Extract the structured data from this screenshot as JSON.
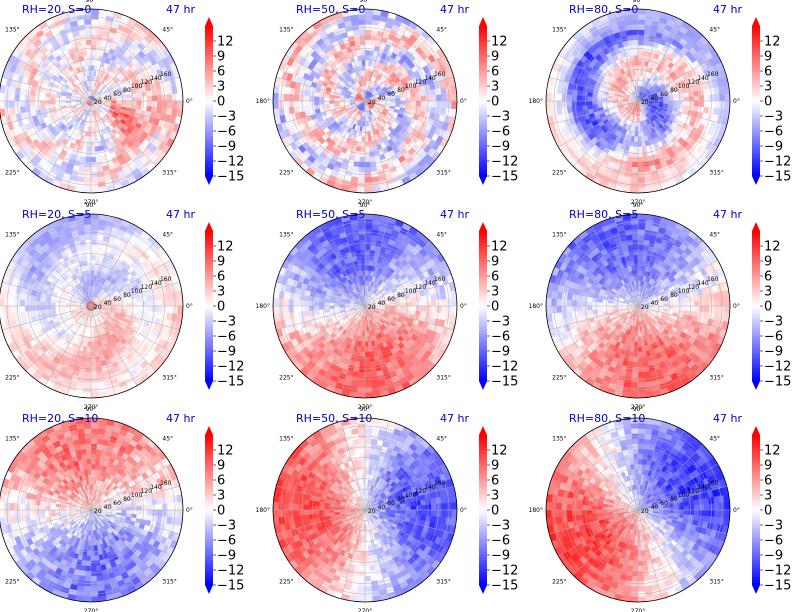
{
  "figure": {
    "background": "#ffffff",
    "title_color": "#0000cc"
  },
  "colormap": {
    "name": "bwr",
    "low": "#0000ff",
    "mid": "#ffffff",
    "high": "#ff0000"
  },
  "chart_data": [
    {
      "type": "heatmap",
      "projection": "polar",
      "title": "RH=20, S=0",
      "time_label": "47 hr",
      "row": 0,
      "col": 0,
      "theta_tick_labels": [
        "0°",
        "45°",
        "90°",
        "135°",
        "180°",
        "225°",
        "270°",
        "315°"
      ],
      "r_tick_labels": [
        "20",
        "40",
        "60",
        "80",
        "100",
        "120",
        "140",
        "160"
      ],
      "rlim": [
        0,
        175
      ],
      "colorbar": {
        "ticks": [
          12,
          9,
          6,
          3,
          0,
          -3,
          -6,
          -9,
          -12,
          -15
        ],
        "range": [
          -15,
          15
        ],
        "extend": "both"
      },
      "pattern": "weak_mixed"
    },
    {
      "type": "heatmap",
      "projection": "polar",
      "title": "RH=50, S=0",
      "time_label": "47 hr",
      "row": 0,
      "col": 1,
      "theta_tick_labels": [
        "0°",
        "45°",
        "90°",
        "135°",
        "180°",
        "225°",
        "270°",
        "315°"
      ],
      "r_tick_labels": [
        "20",
        "40",
        "60",
        "80",
        "100",
        "120",
        "140",
        "160"
      ],
      "rlim": [
        0,
        175
      ],
      "colorbar": {
        "ticks": [
          12,
          9,
          6,
          3,
          0,
          -3,
          -6,
          -9,
          -12,
          -15
        ],
        "range": [
          -15,
          15
        ],
        "extend": "both"
      },
      "pattern": "mixed_rings"
    },
    {
      "type": "heatmap",
      "projection": "polar",
      "title": "RH=80, S=0",
      "time_label": "47 hr",
      "row": 0,
      "col": 2,
      "theta_tick_labels": [
        "0°",
        "45°",
        "90°",
        "135°",
        "180°",
        "225°",
        "270°",
        "315°"
      ],
      "r_tick_labels": [
        "20",
        "40",
        "60",
        "80",
        "100",
        "120",
        "140",
        "160"
      ],
      "rlim": [
        0,
        175
      ],
      "colorbar": {
        "ticks": [
          12,
          9,
          6,
          3,
          0,
          -3,
          -6,
          -9,
          -12,
          -15
        ],
        "range": [
          -15,
          15
        ],
        "extend": "both"
      },
      "pattern": "spiral_blue"
    },
    {
      "type": "heatmap",
      "projection": "polar",
      "title": "RH=20, S=5",
      "time_label": "47 hr",
      "row": 1,
      "col": 0,
      "theta_tick_labels": [
        "0°",
        "45°",
        "90°",
        "135°",
        "180°",
        "225°",
        "270°",
        "315°"
      ],
      "r_tick_labels": [
        "20",
        "40",
        "60",
        "80",
        "100",
        "120",
        "140",
        "160"
      ],
      "rlim": [
        0,
        175
      ],
      "colorbar": {
        "ticks": [
          12,
          9,
          6,
          3,
          0,
          -3,
          -6,
          -9,
          -12,
          -15
        ],
        "range": [
          -15,
          15
        ],
        "extend": "both"
      },
      "pattern": "weak_dipole"
    },
    {
      "type": "heatmap",
      "projection": "polar",
      "title": "RH=50, S=5",
      "time_label": "47 hr",
      "row": 1,
      "col": 1,
      "theta_tick_labels": [
        "0°",
        "45°",
        "90°",
        "135°",
        "180°",
        "225°",
        "270°",
        "315°"
      ],
      "r_tick_labels": [
        "20",
        "40",
        "60",
        "80",
        "100",
        "120",
        "140",
        "160"
      ],
      "rlim": [
        0,
        175
      ],
      "colorbar": {
        "ticks": [
          12,
          9,
          6,
          3,
          0,
          -3,
          -6,
          -9,
          -12,
          -15
        ],
        "range": [
          -15,
          15
        ],
        "extend": "both"
      },
      "pattern": "dipole_ne_sw"
    },
    {
      "type": "heatmap",
      "projection": "polar",
      "title": "RH=80, S=5",
      "time_label": "47 hr",
      "row": 1,
      "col": 2,
      "theta_tick_labels": [
        "0°",
        "45°",
        "90°",
        "135°",
        "180°",
        "225°",
        "270°",
        "315°"
      ],
      "r_tick_labels": [
        "20",
        "40",
        "60",
        "80",
        "100",
        "120",
        "140",
        "160"
      ],
      "rlim": [
        0,
        175
      ],
      "colorbar": {
        "ticks": [
          12,
          9,
          6,
          3,
          0,
          -3,
          -6,
          -9,
          -12,
          -15
        ],
        "range": [
          -15,
          15
        ],
        "extend": "both"
      },
      "pattern": "dipole_n_s"
    },
    {
      "type": "heatmap",
      "projection": "polar",
      "title": "RH=20, S=10",
      "time_label": "47 hr",
      "row": 2,
      "col": 0,
      "theta_tick_labels": [
        "0°",
        "45°",
        "90°",
        "135°",
        "180°",
        "225°",
        "270°",
        "315°"
      ],
      "r_tick_labels": [
        "20",
        "40",
        "60",
        "80",
        "100",
        "120",
        "140",
        "160"
      ],
      "rlim": [
        0,
        175
      ],
      "colorbar": {
        "ticks": [
          12,
          9,
          6,
          3,
          0,
          -3,
          -6,
          -9,
          -12,
          -15
        ],
        "range": [
          -15,
          15
        ],
        "extend": "both"
      },
      "pattern": "red_north_blue_south"
    },
    {
      "type": "heatmap",
      "projection": "polar",
      "title": "RH=50, S=10",
      "time_label": "47 hr",
      "row": 2,
      "col": 1,
      "theta_tick_labels": [
        "0°",
        "45°",
        "90°",
        "135°",
        "180°",
        "225°",
        "270°",
        "315°"
      ],
      "r_tick_labels": [
        "20",
        "40",
        "60",
        "80",
        "100",
        "120",
        "140",
        "160"
      ],
      "rlim": [
        0,
        175
      ],
      "colorbar": {
        "ticks": [
          12,
          9,
          6,
          3,
          0,
          -3,
          -6,
          -9,
          -12,
          -15
        ],
        "range": [
          -15,
          15
        ],
        "extend": "both"
      },
      "pattern": "red_west_blue_east"
    },
    {
      "type": "heatmap",
      "projection": "polar",
      "title": "RH=80, S=10",
      "time_label": "47 hr",
      "row": 2,
      "col": 2,
      "theta_tick_labels": [
        "0°",
        "45°",
        "90°",
        "135°",
        "180°",
        "225°",
        "270°",
        "315°"
      ],
      "r_tick_labels": [
        "20",
        "40",
        "60",
        "80",
        "100",
        "120",
        "140",
        "160"
      ],
      "rlim": [
        0,
        175
      ],
      "colorbar": {
        "ticks": [
          12,
          9,
          6,
          3,
          0,
          -3,
          -6,
          -9,
          -12,
          -15
        ],
        "range": [
          -15,
          15
        ],
        "extend": "both"
      },
      "pattern": "red_west_blue_ne"
    }
  ]
}
